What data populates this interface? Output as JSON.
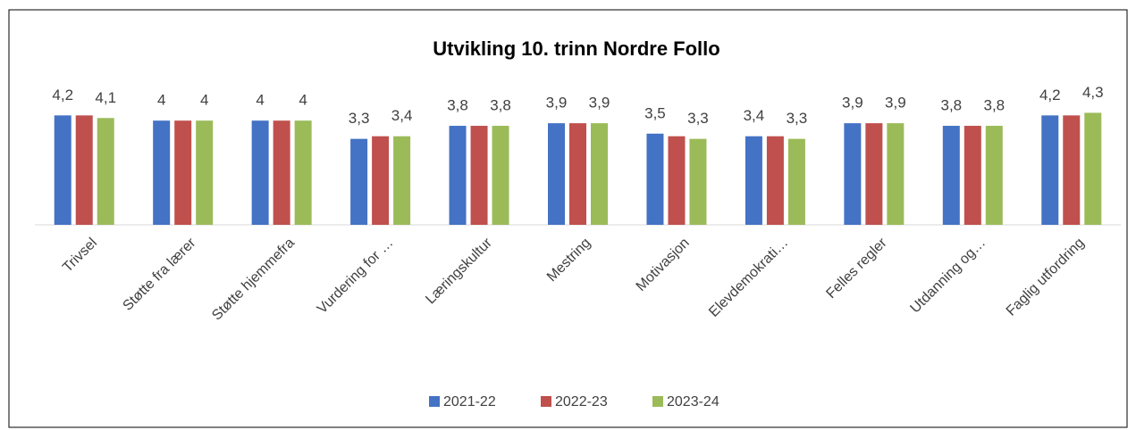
{
  "chart_data": {
    "type": "bar",
    "title": "Utvikling 10. trinn Nordre Follo",
    "categories": [
      "Trivsel",
      "Støtte fra lærer",
      "Støtte hjemmefra",
      "Vurdering for …",
      "Læringskultur",
      "Mestring",
      "Motivasjon",
      "Elevdemokrati…",
      "Felles regler",
      "Utdanning og…",
      "Faglig utfordring"
    ],
    "series": [
      {
        "name": "2021-22",
        "color": "#4472c4",
        "values": [
          4.2,
          4,
          4,
          3.3,
          3.8,
          3.9,
          3.5,
          3.4,
          3.9,
          3.8,
          4.2
        ],
        "value_labels": [
          "4,2",
          "4",
          "4",
          "3,3",
          "3,8",
          "3,9",
          "3,5",
          "3,4",
          "3,9",
          "3,8",
          "4,2"
        ]
      },
      {
        "name": "2022-23",
        "color": "#c0504d",
        "values": [
          4.2,
          4,
          4,
          3.4,
          3.8,
          3.9,
          3.4,
          3.4,
          3.9,
          3.8,
          4.2
        ]
      },
      {
        "name": "2023-24",
        "color": "#9bbb59",
        "values": [
          4.1,
          4,
          4,
          3.4,
          3.8,
          3.9,
          3.3,
          3.3,
          3.9,
          3.8,
          4.3
        ],
        "value_labels": [
          "4,1",
          "4",
          "4",
          "3,4",
          "3,8",
          "3,9",
          "3,3",
          "3,3",
          "3,9",
          "3,8",
          "4,3"
        ]
      }
    ],
    "ylim": [
      0,
      5
    ],
    "legend": "bottom"
  }
}
